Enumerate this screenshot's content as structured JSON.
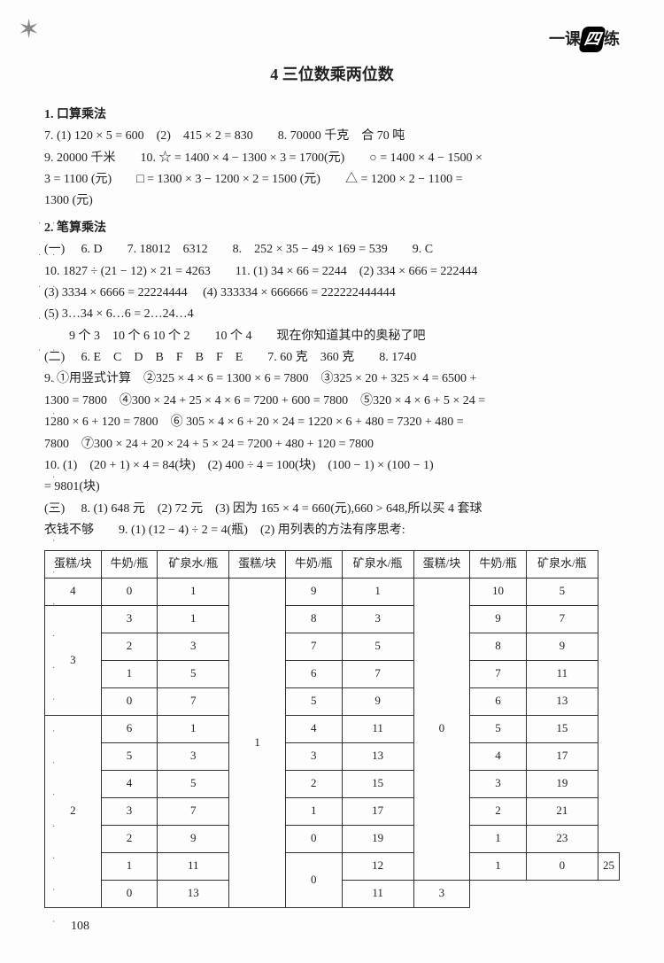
{
  "brand": {
    "pre": "一课",
    "mid": "四",
    "post": "练"
  },
  "title": "4 三位数乘两位数",
  "s1": {
    "heading": "1. 口算乘法",
    "l1": "7. (1) 120 × 5 = 600　(2)　415 × 2 = 830　　8. 70000 千克　合 70 吨",
    "l2": "9. 20000 千米　　10. ☆ = 1400 × 4 − 1300 × 3 = 1700(元)　　○ = 1400 × 4 − 1500 ×",
    "l3": "3 = 1100 (元)　　□ = 1300 × 3 − 1200 × 2 = 1500 (元)　　△ = 1200 × 2 − 1100 =",
    "l4": "1300 (元)"
  },
  "s2": {
    "heading": "2. 笔算乘法",
    "p1": {
      "label": "(一)",
      "l1": "6. D　　7. 18012　6312　　8.　252 × 35 − 49 × 169 = 539　　9. C",
      "l2": "10. 1827 ÷ (21 − 12) × 21 = 4263　　11. (1) 34 × 66 = 2244　(2) 334 × 666 = 222444",
      "l3": "(3) 3334 × 6666 = 22224444　 (4) 333334 × 666666 = 222222444444",
      "l4": "(5) 3…34 × 6…6 = 2…24…4",
      "l4b": "　　9 个 3　10 个 6 10 个 2　　10 个 4　　现在你知道其中的奥秘了吧"
    },
    "p2": {
      "label": "(二)",
      "l1": "6. E　C　D　B　F　B　F　E　　7. 60 克　360 克　　8. 1740",
      "l2": "9. ①用竖式计算　②325 × 4 × 6 = 1300 × 6 = 7800　③325 × 20 + 325 × 4 = 6500 +",
      "l3": "1300 = 7800　④300 × 24 + 25 × 4 × 6 = 7200 + 600 = 7800　⑤320 × 4 × 6 + 5 × 24 =",
      "l4": "1280 × 6 + 120 = 7800　⑥ 305 × 4 × 6 + 20 × 24 = 1220 × 6 + 480 = 7320 + 480 =",
      "l5": "7800　⑦300 × 24 + 20 × 24 + 5 × 24 = 7200 + 480 + 120 = 7800",
      "l6": "10. (1)　(20 + 1) × 4 = 84(块)　(2) 400 ÷ 4 = 100(块)　(100 − 1) × (100 − 1)",
      "l7": "= 9801(块)"
    },
    "p3": {
      "label": "(三)",
      "l1": "8. (1) 648 元　(2) 72 元　(3) 因为 165 × 4 = 660(元),660 > 648,所以买 4 套球",
      "l2": "衣钱不够　　9. (1) (12 − 4) ÷ 2 = 4(瓶)　(2) 用列表的方法有序思考:"
    }
  },
  "table": {
    "headers": [
      "蛋糕/块",
      "牛奶/瓶",
      "矿泉水/瓶",
      "蛋糕/块",
      "牛奶/瓶",
      "矿泉水/瓶",
      "蛋糕/块",
      "牛奶/瓶",
      "矿泉水/瓶"
    ],
    "rows": [
      [
        "4",
        "0",
        "1",
        "_r12:1",
        "9",
        "1",
        "_r11:0",
        "10",
        "5"
      ],
      [
        "_r4:3",
        "3",
        "1",
        "",
        "8",
        "3",
        "",
        "9",
        "7"
      ],
      [
        "",
        "2",
        "3",
        "",
        "7",
        "5",
        "",
        "8",
        "9"
      ],
      [
        "",
        "1",
        "5",
        "",
        "6",
        "7",
        "",
        "7",
        "11"
      ],
      [
        "",
        "0",
        "7",
        "",
        "5",
        "9",
        "",
        "6",
        "13"
      ],
      [
        "_r7:2",
        "6",
        "1",
        "",
        "4",
        "11",
        "",
        "5",
        "15"
      ],
      [
        "",
        "5",
        "3",
        "",
        "3",
        "13",
        "",
        "4",
        "17"
      ],
      [
        "",
        "4",
        "5",
        "",
        "2",
        "15",
        "",
        "3",
        "19"
      ],
      [
        "",
        "3",
        "7",
        "",
        "1",
        "17",
        "",
        "2",
        "21"
      ],
      [
        "",
        "2",
        "9",
        "",
        "0",
        "19",
        "",
        "1",
        "23"
      ],
      [
        "",
        "1",
        "11",
        "_r2:0",
        "12",
        "1",
        "",
        "0",
        "25"
      ],
      [
        "",
        "0",
        "13",
        "",
        "11",
        "3",
        "",
        "",
        ""
      ]
    ]
  },
  "pageNum": "108"
}
